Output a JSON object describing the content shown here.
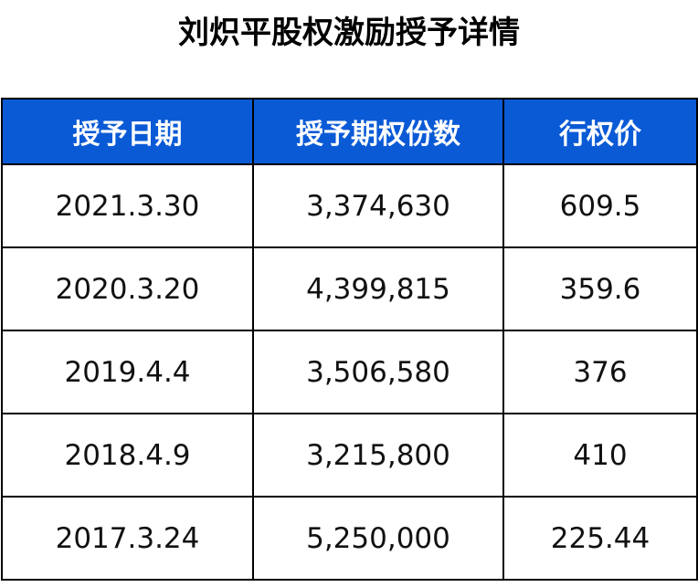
{
  "title": "刘炽平股权激励授予详情",
  "colors": {
    "header_bg": "#0a5ad6",
    "header_text": "#ffffff",
    "border": "#000000"
  },
  "table": {
    "headers": [
      "授予日期",
      "授予期权份数",
      "行权价"
    ],
    "rows": [
      [
        "2021.3.30",
        "3,374,630",
        "609.5"
      ],
      [
        "2020.3.20",
        "4,399,815",
        "359.6"
      ],
      [
        "2019.4.4",
        "3,506,580",
        "376"
      ],
      [
        "2018.4.9",
        "3,215,800",
        "410"
      ],
      [
        "2017.3.24",
        "5,250,000",
        "225.44"
      ]
    ]
  }
}
